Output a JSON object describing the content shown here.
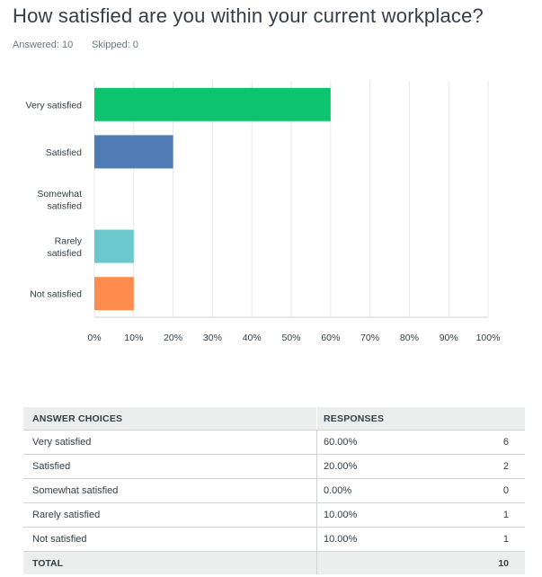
{
  "question": {
    "title": "How satisfied are you within your current workplace?",
    "answered_label": "Answered: 10",
    "skipped_label": "Skipped: 0"
  },
  "chart_data": {
    "type": "bar",
    "orientation": "horizontal",
    "categories": [
      [
        "Very satisfied"
      ],
      [
        "Satisfied"
      ],
      [
        "Somewhat",
        "satisfied"
      ],
      [
        "Rarely",
        "satisfied"
      ],
      [
        "Not satisfied"
      ]
    ],
    "values": [
      60,
      20,
      0,
      10,
      10
    ],
    "colors": [
      "#0cc46e",
      "#507cb6",
      "#f0c84d",
      "#6bc8cd",
      "#ff8b4f"
    ],
    "xlim": [
      0,
      100
    ],
    "xticks": [
      "0%",
      "10%",
      "20%",
      "30%",
      "40%",
      "50%",
      "60%",
      "70%",
      "80%",
      "90%",
      "100%"
    ],
    "grid": true,
    "title": "",
    "xlabel": "",
    "ylabel": ""
  },
  "table": {
    "headers": {
      "choice": "ANSWER CHOICES",
      "responses": "RESPONSES"
    },
    "rows": [
      {
        "choice": "Very satisfied",
        "percent": "60.00%",
        "count": "6"
      },
      {
        "choice": "Satisfied",
        "percent": "20.00%",
        "count": "2"
      },
      {
        "choice": "Somewhat satisfied",
        "percent": "0.00%",
        "count": "0"
      },
      {
        "choice": "Rarely satisfied",
        "percent": "10.00%",
        "count": "1"
      },
      {
        "choice": "Not satisfied",
        "percent": "10.00%",
        "count": "1"
      }
    ],
    "total": {
      "label": "TOTAL",
      "count": "10"
    }
  }
}
